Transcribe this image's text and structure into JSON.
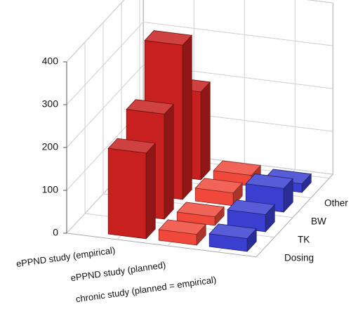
{
  "chart_data": {
    "type": "bar3d",
    "categories": [
      "ePPND study (empirical)",
      "ePPND study (planned)",
      "chronic study (planned = empirical)"
    ],
    "depth_categories": [
      "Dosing",
      "TK",
      "BW",
      "Other"
    ],
    "values": [
      [
        200,
        245,
        360,
        205
      ],
      [
        25,
        20,
        30,
        25
      ],
      [
        30,
        40,
        55,
        20
      ]
    ],
    "colors": [
      "#c8201f",
      "#f0483a",
      "#3b3fd0"
    ],
    "ylim": [
      0,
      400
    ],
    "yticks": [
      0,
      100,
      200,
      300,
      400
    ],
    "grid": true
  }
}
